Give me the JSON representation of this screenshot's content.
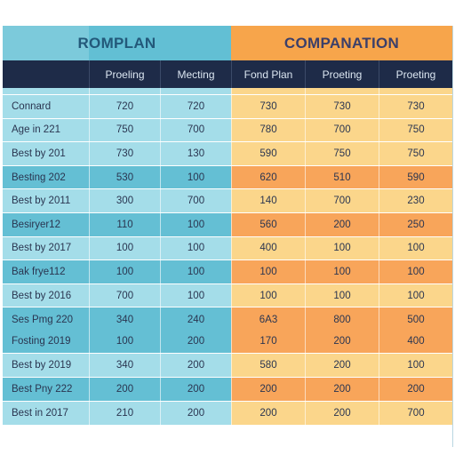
{
  "table": {
    "group_left": "ROMPLAN",
    "group_right": "COMPANATION",
    "columns": [
      "",
      "Proeling",
      "Mecting",
      "Fond Plan",
      "Proeting",
      "Proeting"
    ],
    "rows": [
      {
        "style": "pad",
        "cells": [
          "",
          "",
          "",
          "",
          "",
          ""
        ]
      },
      {
        "style": "light",
        "cells": [
          "Connard",
          "720",
          "720",
          "730",
          "730",
          "730"
        ]
      },
      {
        "style": "light",
        "cells": [
          "Age in 221",
          "750",
          "700",
          "780",
          "700",
          "750"
        ]
      },
      {
        "style": "light",
        "cells": [
          "Best by 201",
          "730",
          "130",
          "590",
          "750",
          "750"
        ]
      },
      {
        "style": "dark",
        "cells": [
          "Besting 202",
          "530",
          "100",
          "620",
          "510",
          "590"
        ]
      },
      {
        "style": "light",
        "cells": [
          "Best by 2011",
          "300",
          "700",
          "140",
          "700",
          "230"
        ]
      },
      {
        "style": "dark",
        "cells": [
          "Besiryer12",
          "110",
          "100",
          "560",
          "200",
          "250"
        ]
      },
      {
        "style": "light",
        "cells": [
          "Best by 2017",
          "100",
          "100",
          "400",
          "100",
          "100"
        ]
      },
      {
        "style": "dark",
        "cells": [
          "Bak frye112",
          "100",
          "100",
          "100",
          "100",
          "100"
        ]
      },
      {
        "style": "light",
        "cells": [
          "Best by 2016",
          "700",
          "100",
          "100",
          "100",
          "100"
        ]
      },
      {
        "style": "dark-tall",
        "cells": [
          [
            "Ses Pmg 220",
            "Fosting 2019"
          ],
          [
            "340",
            "100"
          ],
          [
            "240",
            "200"
          ],
          [
            "6A3",
            "170"
          ],
          [
            "800",
            "200"
          ],
          [
            "500",
            "400"
          ]
        ]
      },
      {
        "style": "light",
        "cells": [
          "Best by 2019",
          "340",
          "200",
          "580",
          "200",
          "100"
        ]
      },
      {
        "style": "dark",
        "cells": [
          "Best Pny 222",
          "200",
          "200",
          "200",
          "200",
          "200"
        ]
      },
      {
        "style": "light",
        "cells": [
          "Best in 2017",
          "210",
          "200",
          "200",
          "200",
          "700"
        ]
      }
    ]
  },
  "colors": {
    "header_dark": "#1e2b48",
    "blue_light": "#a4dde9",
    "blue_dark": "#64bfd4",
    "orange_light": "#fbd68b",
    "orange_dark": "#f8a55a",
    "orange_band": "#f7a54b"
  }
}
